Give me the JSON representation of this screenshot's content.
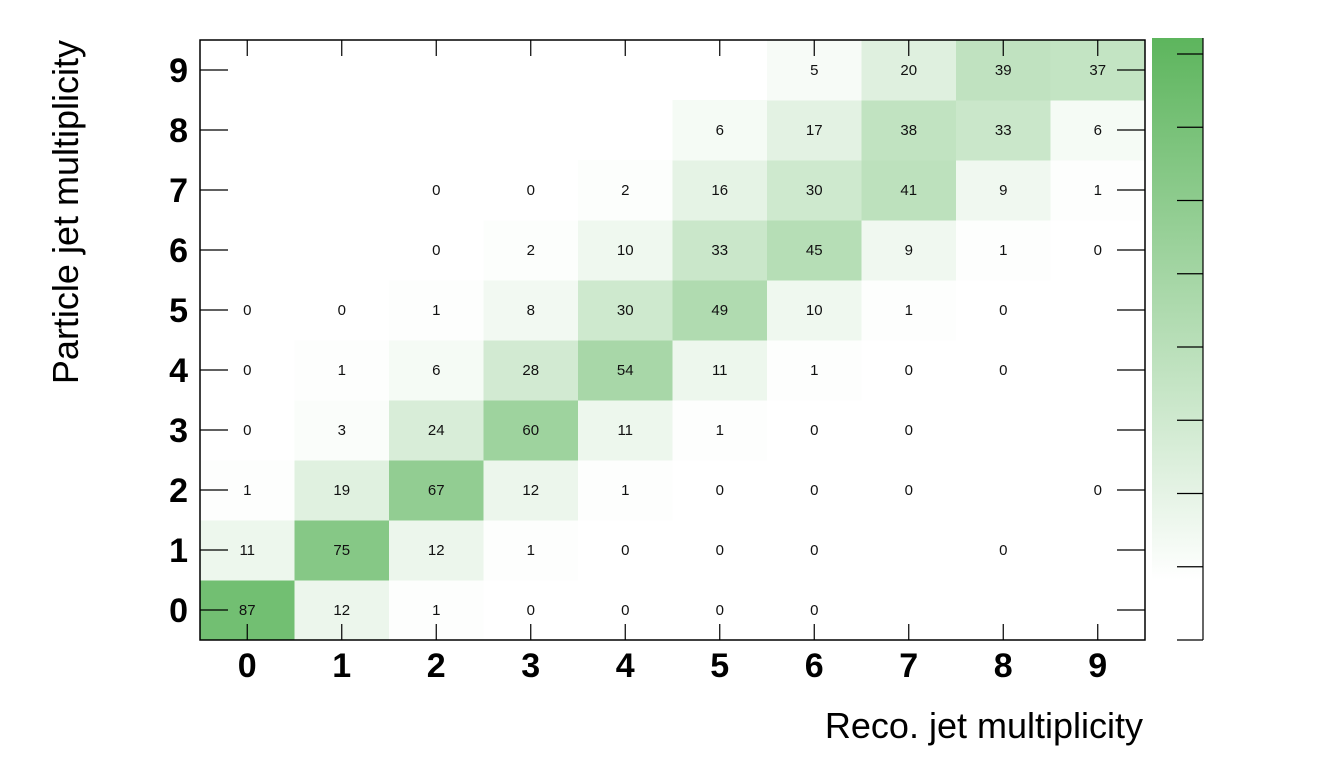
{
  "chart_data": {
    "type": "heatmap",
    "xlabel": "Reco. jet multiplicity",
    "ylabel": "Particle jet multiplicity",
    "x_categories": [
      "0",
      "1",
      "2",
      "3",
      "4",
      "5",
      "6",
      "7",
      "8",
      "9"
    ],
    "y_categories": [
      "0",
      "1",
      "2",
      "3",
      "4",
      "5",
      "6",
      "7",
      "8",
      "9"
    ],
    "zlim": [
      0,
      100
    ],
    "colormap": [
      "#ffffff",
      "#5db55d"
    ],
    "grid": false,
    "colorbar": "right",
    "cells": [
      {
        "x": 0,
        "y": 0,
        "value": 87
      },
      {
        "x": 1,
        "y": 0,
        "value": 12
      },
      {
        "x": 2,
        "y": 0,
        "value": 1
      },
      {
        "x": 3,
        "y": 0,
        "value": 0
      },
      {
        "x": 4,
        "y": 0,
        "value": 0
      },
      {
        "x": 5,
        "y": 0,
        "value": 0
      },
      {
        "x": 6,
        "y": 0,
        "value": 0
      },
      {
        "x": 0,
        "y": 1,
        "value": 11
      },
      {
        "x": 1,
        "y": 1,
        "value": 75
      },
      {
        "x": 2,
        "y": 1,
        "value": 12
      },
      {
        "x": 3,
        "y": 1,
        "value": 1
      },
      {
        "x": 4,
        "y": 1,
        "value": 0
      },
      {
        "x": 5,
        "y": 1,
        "value": 0
      },
      {
        "x": 6,
        "y": 1,
        "value": 0
      },
      {
        "x": 8,
        "y": 1,
        "value": 0
      },
      {
        "x": 0,
        "y": 2,
        "value": 1
      },
      {
        "x": 1,
        "y": 2,
        "value": 19
      },
      {
        "x": 2,
        "y": 2,
        "value": 67
      },
      {
        "x": 3,
        "y": 2,
        "value": 12
      },
      {
        "x": 4,
        "y": 2,
        "value": 1
      },
      {
        "x": 5,
        "y": 2,
        "value": 0
      },
      {
        "x": 6,
        "y": 2,
        "value": 0
      },
      {
        "x": 7,
        "y": 2,
        "value": 0
      },
      {
        "x": 9,
        "y": 2,
        "value": 0
      },
      {
        "x": 0,
        "y": 3,
        "value": 0
      },
      {
        "x": 1,
        "y": 3,
        "value": 3
      },
      {
        "x": 2,
        "y": 3,
        "value": 24
      },
      {
        "x": 3,
        "y": 3,
        "value": 60
      },
      {
        "x": 4,
        "y": 3,
        "value": 11
      },
      {
        "x": 5,
        "y": 3,
        "value": 1
      },
      {
        "x": 6,
        "y": 3,
        "value": 0
      },
      {
        "x": 7,
        "y": 3,
        "value": 0
      },
      {
        "x": 0,
        "y": 4,
        "value": 0
      },
      {
        "x": 1,
        "y": 4,
        "value": 1
      },
      {
        "x": 2,
        "y": 4,
        "value": 6
      },
      {
        "x": 3,
        "y": 4,
        "value": 28
      },
      {
        "x": 4,
        "y": 4,
        "value": 54
      },
      {
        "x": 5,
        "y": 4,
        "value": 11
      },
      {
        "x": 6,
        "y": 4,
        "value": 1
      },
      {
        "x": 7,
        "y": 4,
        "value": 0
      },
      {
        "x": 8,
        "y": 4,
        "value": 0
      },
      {
        "x": 0,
        "y": 5,
        "value": 0
      },
      {
        "x": 1,
        "y": 5,
        "value": 0
      },
      {
        "x": 2,
        "y": 5,
        "value": 1
      },
      {
        "x": 3,
        "y": 5,
        "value": 8
      },
      {
        "x": 4,
        "y": 5,
        "value": 30
      },
      {
        "x": 5,
        "y": 5,
        "value": 49
      },
      {
        "x": 6,
        "y": 5,
        "value": 10
      },
      {
        "x": 7,
        "y": 5,
        "value": 1
      },
      {
        "x": 8,
        "y": 5,
        "value": 0
      },
      {
        "x": 2,
        "y": 6,
        "value": 0
      },
      {
        "x": 3,
        "y": 6,
        "value": 2
      },
      {
        "x": 4,
        "y": 6,
        "value": 10
      },
      {
        "x": 5,
        "y": 6,
        "value": 33
      },
      {
        "x": 6,
        "y": 6,
        "value": 45
      },
      {
        "x": 7,
        "y": 6,
        "value": 9
      },
      {
        "x": 8,
        "y": 6,
        "value": 1
      },
      {
        "x": 9,
        "y": 6,
        "value": 0
      },
      {
        "x": 2,
        "y": 7,
        "value": 0
      },
      {
        "x": 3,
        "y": 7,
        "value": 0
      },
      {
        "x": 4,
        "y": 7,
        "value": 2
      },
      {
        "x": 5,
        "y": 7,
        "value": 16
      },
      {
        "x": 6,
        "y": 7,
        "value": 30
      },
      {
        "x": 7,
        "y": 7,
        "value": 41
      },
      {
        "x": 8,
        "y": 7,
        "value": 9
      },
      {
        "x": 9,
        "y": 7,
        "value": 1
      },
      {
        "x": 5,
        "y": 8,
        "value": 6
      },
      {
        "x": 6,
        "y": 8,
        "value": 17
      },
      {
        "x": 7,
        "y": 8,
        "value": 38
      },
      {
        "x": 8,
        "y": 8,
        "value": 33
      },
      {
        "x": 9,
        "y": 8,
        "value": 6
      },
      {
        "x": 6,
        "y": 9,
        "value": 5
      },
      {
        "x": 7,
        "y": 9,
        "value": 20
      },
      {
        "x": 8,
        "y": 9,
        "value": 39
      },
      {
        "x": 9,
        "y": 9,
        "value": 37
      }
    ]
  }
}
